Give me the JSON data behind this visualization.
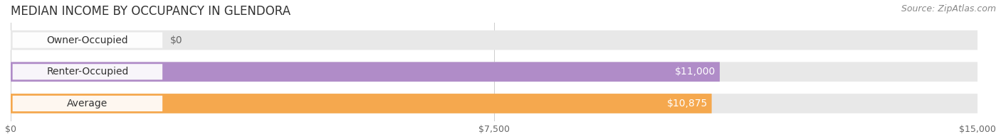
{
  "title": "MEDIAN INCOME BY OCCUPANCY IN GLENDORA",
  "source": "Source: ZipAtlas.com",
  "categories": [
    "Owner-Occupied",
    "Renter-Occupied",
    "Average"
  ],
  "values": [
    0,
    11000,
    10875
  ],
  "bar_colors": [
    "#6ecdd4",
    "#b08cc8",
    "#f5a84e"
  ],
  "bar_labels": [
    "$0",
    "$11,000",
    "$10,875"
  ],
  "label_colors": [
    "#666666",
    "#ffffff",
    "#ffffff"
  ],
  "xlim": [
    0,
    15000
  ],
  "xtick_values": [
    0,
    7500,
    15000
  ],
  "xtick_labels": [
    "$0",
    "$7,500",
    "$15,000"
  ],
  "title_fontsize": 12,
  "source_fontsize": 9,
  "bar_height": 0.62,
  "background_color": "#ffffff",
  "bar_bg_color": "#e8e8e8",
  "label_fontsize": 10,
  "category_fontsize": 10,
  "pill_color": "#ffffff"
}
